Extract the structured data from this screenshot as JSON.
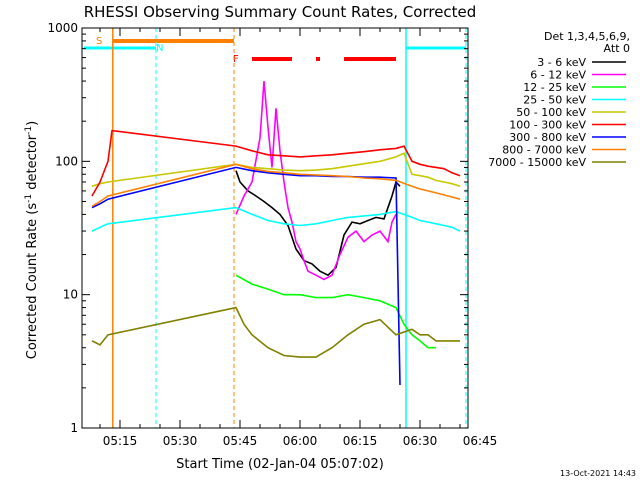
{
  "chart_data": {
    "type": "line",
    "title": "RHESSI Observing Summary Count Rates, Corrected",
    "xlabel": "Start Time (02-Jan-04 05:07:02)",
    "ylabel": "Corrected Count Rate (s",
    "ylabel_sup1": "-1",
    "ylabel_mid": " detector",
    "ylabel_sup2": "-1",
    "ylabel_end": ")",
    "y_scale": "log",
    "ylim": [
      1,
      1000
    ],
    "y_ticks": [
      {
        "value": 1,
        "label": "1"
      },
      {
        "value": 10,
        "label": "10"
      },
      {
        "value": 100,
        "label": "100"
      },
      {
        "value": 1000,
        "label": "1000"
      }
    ],
    "xlim_minutes": [
      5.5,
      102
    ],
    "x_ticks": [
      {
        "minute": 15,
        "label": "05:15"
      },
      {
        "minute": 30,
        "label": "05:30"
      },
      {
        "minute": 45,
        "label": "05:45"
      },
      {
        "minute": 60,
        "label": "06:00"
      },
      {
        "minute": 75,
        "label": "06:15"
      },
      {
        "minute": 90,
        "label": "06:30"
      },
      {
        "minute": 105,
        "label": "06:45"
      }
    ],
    "legend_header": [
      "Det 1,3,4,5,6,9,",
      "Att 0"
    ],
    "legend_placement": "right",
    "series": [
      {
        "name": "3 - 6 keV",
        "color": "#000000",
        "points": [
          [
            44,
            85
          ],
          [
            45,
            70
          ],
          [
            47,
            60
          ],
          [
            49,
            55
          ],
          [
            51,
            50
          ],
          [
            53,
            45
          ],
          [
            55,
            40
          ],
          [
            57,
            33
          ],
          [
            59,
            22
          ],
          [
            61,
            18
          ],
          [
            63,
            17
          ],
          [
            65,
            15
          ],
          [
            67,
            14
          ],
          [
            69,
            16
          ],
          [
            71,
            28
          ],
          [
            73,
            35
          ],
          [
            75,
            34
          ],
          [
            77,
            36
          ],
          [
            79,
            38
          ],
          [
            81,
            37
          ],
          [
            83,
            55
          ],
          [
            84,
            70
          ],
          [
            85,
            65
          ]
        ]
      },
      {
        "name": "6 - 12 keV",
        "color": "#ff00ff",
        "points": [
          [
            44,
            40
          ],
          [
            46,
            55
          ],
          [
            48,
            70
          ],
          [
            50,
            150
          ],
          [
            51,
            400
          ],
          [
            52,
            180
          ],
          [
            53,
            90
          ],
          [
            54,
            250
          ],
          [
            55,
            120
          ],
          [
            56,
            70
          ],
          [
            57,
            45
          ],
          [
            58,
            35
          ],
          [
            59,
            25
          ],
          [
            60,
            22
          ],
          [
            61,
            18
          ],
          [
            62,
            15
          ],
          [
            64,
            14
          ],
          [
            66,
            13
          ],
          [
            68,
            14
          ],
          [
            70,
            20
          ],
          [
            72,
            27
          ],
          [
            74,
            30
          ],
          [
            76,
            25
          ],
          [
            78,
            28
          ],
          [
            80,
            30
          ],
          [
            82,
            25
          ],
          [
            83,
            35
          ],
          [
            84,
            40
          ]
        ]
      },
      {
        "name": "12 - 25 keV",
        "color": "#00ff00",
        "points": [
          [
            44,
            14
          ],
          [
            48,
            12
          ],
          [
            52,
            11
          ],
          [
            56,
            10
          ],
          [
            60,
            10
          ],
          [
            64,
            9.5
          ],
          [
            68,
            9.5
          ],
          [
            72,
            10
          ],
          [
            76,
            9.5
          ],
          [
            80,
            9
          ],
          [
            84,
            8
          ],
          [
            86,
            6
          ],
          [
            88,
            5
          ],
          [
            90,
            4.5
          ],
          [
            92,
            4
          ],
          [
            94,
            4
          ]
        ]
      },
      {
        "name": "25 - 50 keV",
        "color": "#00ffff",
        "points": [
          [
            8,
            30
          ],
          [
            10,
            32
          ],
          [
            12,
            34
          ],
          [
            44,
            45
          ],
          [
            48,
            40
          ],
          [
            52,
            36
          ],
          [
            56,
            34
          ],
          [
            60,
            33
          ],
          [
            64,
            34
          ],
          [
            68,
            36
          ],
          [
            72,
            38
          ],
          [
            76,
            39
          ],
          [
            80,
            40
          ],
          [
            84,
            42
          ],
          [
            86,
            40
          ],
          [
            88,
            38
          ],
          [
            90,
            36
          ],
          [
            92,
            35
          ],
          [
            94,
            34
          ],
          [
            96,
            33
          ],
          [
            98,
            32
          ],
          [
            100,
            30
          ]
        ]
      },
      {
        "name": "50 - 100 keV",
        "color": "#c8c800",
        "points": [
          [
            8,
            65
          ],
          [
            10,
            68
          ],
          [
            12,
            70
          ],
          [
            44,
            95
          ],
          [
            48,
            90
          ],
          [
            52,
            88
          ],
          [
            56,
            86
          ],
          [
            60,
            85
          ],
          [
            64,
            86
          ],
          [
            68,
            88
          ],
          [
            72,
            92
          ],
          [
            76,
            96
          ],
          [
            80,
            100
          ],
          [
            84,
            108
          ],
          [
            86,
            115
          ],
          [
            88,
            80
          ],
          [
            90,
            78
          ],
          [
            92,
            76
          ],
          [
            94,
            72
          ],
          [
            96,
            70
          ],
          [
            98,
            68
          ],
          [
            100,
            65
          ]
        ]
      },
      {
        "name": "100 - 300 keV",
        "color": "#ff0000",
        "points": [
          [
            8,
            55
          ],
          [
            10,
            70
          ],
          [
            12,
            100
          ],
          [
            13,
            170
          ],
          [
            44,
            130
          ],
          [
            48,
            120
          ],
          [
            52,
            112
          ],
          [
            56,
            110
          ],
          [
            60,
            108
          ],
          [
            64,
            110
          ],
          [
            68,
            112
          ],
          [
            72,
            115
          ],
          [
            76,
            118
          ],
          [
            80,
            122
          ],
          [
            84,
            125
          ],
          [
            86,
            130
          ],
          [
            88,
            100
          ],
          [
            90,
            95
          ],
          [
            92,
            92
          ],
          [
            94,
            90
          ],
          [
            96,
            88
          ],
          [
            98,
            82
          ],
          [
            100,
            78
          ]
        ]
      },
      {
        "name": "300 - 800 keV",
        "color": "#0000ff",
        "points": [
          [
            8,
            45
          ],
          [
            10,
            48
          ],
          [
            12,
            52
          ],
          [
            44,
            90
          ],
          [
            48,
            85
          ],
          [
            52,
            82
          ],
          [
            56,
            80
          ],
          [
            60,
            78
          ],
          [
            64,
            78
          ],
          [
            68,
            77
          ],
          [
            72,
            77
          ],
          [
            76,
            76
          ],
          [
            80,
            76
          ],
          [
            84,
            75
          ],
          [
            85,
            2.1
          ]
        ]
      },
      {
        "name": "800 - 7000 keV",
        "color": "#ff8000",
        "points": [
          [
            8,
            46
          ],
          [
            10,
            50
          ],
          [
            12,
            55
          ],
          [
            44,
            95
          ],
          [
            48,
            88
          ],
          [
            52,
            84
          ],
          [
            56,
            82
          ],
          [
            60,
            80
          ],
          [
            64,
            79
          ],
          [
            68,
            78
          ],
          [
            72,
            77
          ],
          [
            76,
            75
          ],
          [
            80,
            74
          ],
          [
            84,
            72
          ],
          [
            88,
            65
          ],
          [
            90,
            62
          ],
          [
            92,
            60
          ],
          [
            94,
            58
          ],
          [
            96,
            56
          ],
          [
            98,
            54
          ],
          [
            100,
            52
          ]
        ]
      },
      {
        "name": "7000 - 15000 keV",
        "color": "#808000",
        "points": [
          [
            8,
            4.5
          ],
          [
            10,
            4.2
          ],
          [
            12,
            5
          ],
          [
            44,
            8
          ],
          [
            46,
            6
          ],
          [
            48,
            5
          ],
          [
            52,
            4
          ],
          [
            56,
            3.5
          ],
          [
            60,
            3.4
          ],
          [
            64,
            3.4
          ],
          [
            68,
            4
          ],
          [
            72,
            5
          ],
          [
            76,
            6
          ],
          [
            80,
            6.5
          ],
          [
            84,
            5
          ],
          [
            88,
            5.5
          ],
          [
            90,
            5
          ],
          [
            92,
            5
          ],
          [
            94,
            4.5
          ],
          [
            96,
            4.5
          ],
          [
            98,
            4.5
          ],
          [
            100,
            4.5
          ]
        ]
      }
    ],
    "annotations": [
      {
        "text": "S",
        "color": "#ff8000"
      },
      {
        "text": "N",
        "color": "#00ffff"
      },
      {
        "text": "F",
        "color": "#ff0000"
      }
    ],
    "footer": "13-Oct-2021 14:43"
  },
  "colors": {
    "background": "#ffffff",
    "axes": "#000000",
    "saa": "#ff8000",
    "night": "#00ffff",
    "flare": "#ff0000"
  }
}
